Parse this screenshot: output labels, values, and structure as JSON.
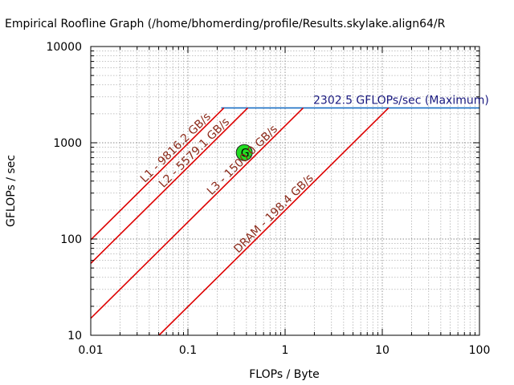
{
  "chart_data": {
    "type": "line",
    "title": "Empirical Roofline Graph (/home/bhomerding/profile/Results.skylake.align64/R",
    "xlabel": "FLOPs / Byte",
    "ylabel": "GFLOPs / sec",
    "x_scale": "log",
    "y_scale": "log",
    "xlim": [
      0.01,
      100
    ],
    "ylim": [
      10,
      10000
    ],
    "x_ticks": [
      {
        "value": 0.01,
        "label": "0.01"
      },
      {
        "value": 0.1,
        "label": "0.1"
      },
      {
        "value": 1,
        "label": "1"
      },
      {
        "value": 10,
        "label": "10"
      },
      {
        "value": 100,
        "label": "100"
      }
    ],
    "y_ticks": [
      {
        "value": 10,
        "label": "10"
      },
      {
        "value": 100,
        "label": "100"
      },
      {
        "value": 1000,
        "label": "1000"
      },
      {
        "value": 10000,
        "label": "10000"
      }
    ],
    "grid": true,
    "compute_roof": {
      "label": "2302.5 GFLOPs/sec (Maximum)",
      "value": 2302.5,
      "x_start": 0.22,
      "color": "#1a6fc4"
    },
    "bandwidth_roofs": [
      {
        "label": "L1 - 9816.2 GB/s",
        "bandwidth": 9816.2,
        "color": "#dd0000"
      },
      {
        "label": "L2 - 5579.1 GB/s",
        "bandwidth": 5579.1,
        "color": "#dd0000"
      },
      {
        "label": "L3 - 1500.0 GB/s",
        "bandwidth": 1500.0,
        "color": "#dd0000"
      },
      {
        "label": "DRAM - 198.4 GB/s",
        "bandwidth": 198.4,
        "color": "#dd0000"
      }
    ],
    "points": [
      {
        "label": "G",
        "x": 0.38,
        "y": 790,
        "color": "#22dd22"
      }
    ],
    "label_color": "#8b2a1a",
    "compute_label_color": "#1a1a80"
  }
}
